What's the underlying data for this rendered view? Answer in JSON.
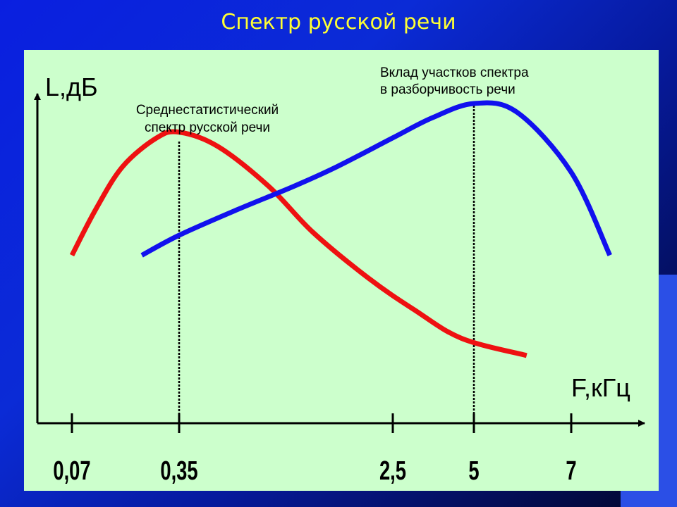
{
  "slide": {
    "title": "Спектр русской речи",
    "title_color": "#ffff33",
    "background_color": "#0a22d8",
    "panel_color": "#ccffcc"
  },
  "chart_data": {
    "type": "line",
    "ylabel": "L,дБ",
    "xlabel": "F,кГц",
    "x_scale": "log",
    "x_ticks": [
      "0,07",
      "0,35",
      "2,5",
      "5",
      "7"
    ],
    "x_tick_values": [
      0.07,
      0.35,
      2.5,
      5,
      7
    ],
    "y_range": [
      0,
      100
    ],
    "grid": false,
    "series": [
      {
        "name": "Среднестатистический спектр русской речи",
        "color": "#ee1111",
        "x": [
          0.07,
          0.1,
          0.15,
          0.25,
          0.35,
          0.5,
          0.8,
          1.2,
          2.0,
          3.0,
          4.5,
          6.0
        ],
        "y": [
          47,
          63,
          78,
          88,
          90,
          85,
          71,
          55,
          39,
          28,
          18,
          12
        ]
      },
      {
        "name": "Вклад участков спектра в разборчивость речи",
        "color": "#1111ee",
        "x": [
          0.2,
          0.35,
          0.6,
          1.0,
          1.5,
          2.5,
          3.5,
          5.0,
          5.8,
          7.0,
          8.0
        ],
        "y": [
          47,
          54,
          63,
          71,
          78,
          88,
          95,
          100,
          97,
          76,
          47
        ]
      }
    ],
    "vertical_lines_at": [
      0.35,
      5
    ],
    "annotations": [
      {
        "text_lines": [
          "Среднестатистический",
          "спектр русской речи"
        ],
        "target": 0.35
      },
      {
        "text_lines": [
          "Вклад участков спектра",
          "в разборчивость речи"
        ],
        "target": 5
      }
    ]
  }
}
